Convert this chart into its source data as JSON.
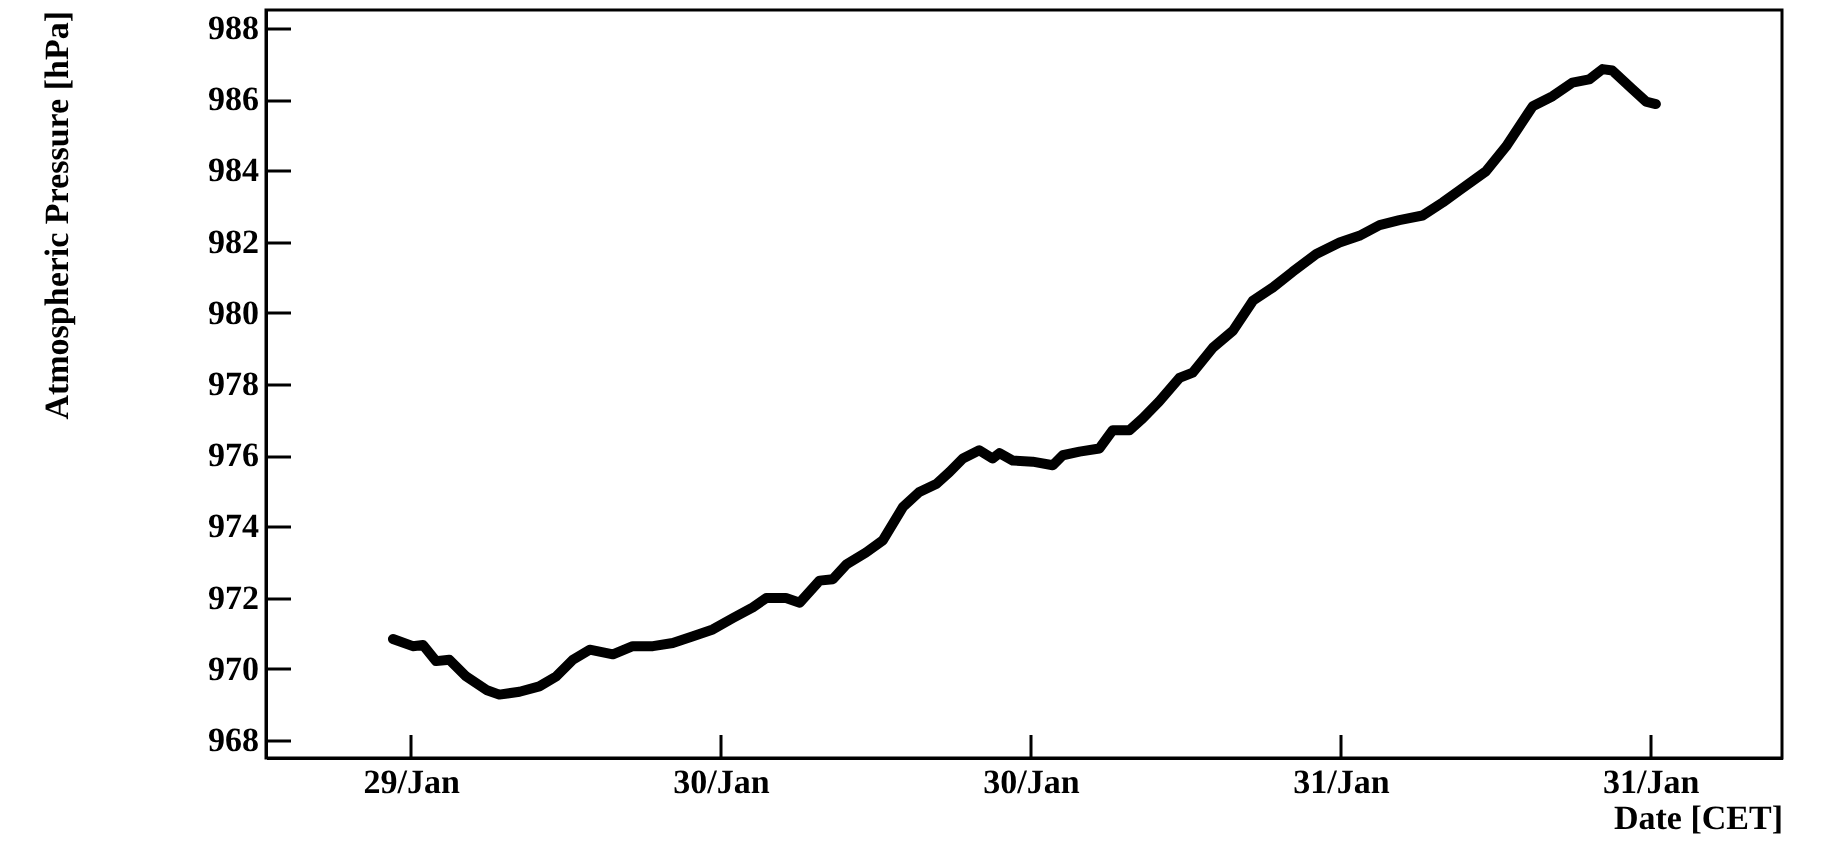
{
  "chart_data": {
    "type": "line",
    "xlabel": "Date [CET]",
    "ylabel": "Atmospheric Pressure [hPa]",
    "x": [
      "--01-29T11:19",
      "--01-29T12:05",
      "--01-29T12:29",
      "--01-29T12:59",
      "--01-29T13:30",
      "--01-29T14:09",
      "--01-29T14:56",
      "--01-29T15:26",
      "--01-29T16:13",
      "--01-29T16:59",
      "--01-29T17:38",
      "--01-29T18:17",
      "--01-29T18:56",
      "--01-29T19:50",
      "--01-29T20:36",
      "--01-29T21:23",
      "--01-29T22:09",
      "--01-29T22:56",
      "--01-29T23:42",
      "--01-30T00:29",
      "--01-30T01:15",
      "--01-30T01:46",
      "--01-30T02:32",
      "--01-30T03:04",
      "--01-30T03:50",
      "--01-30T04:21",
      "--01-30T04:52",
      "--01-30T05:38",
      "--01-30T06:17",
      "--01-30T07:04",
      "--01-30T07:42",
      "--01-30T08:21",
      "--01-30T08:52",
      "--01-30T09:23",
      "--01-30T10:01",
      "--01-30T10:32",
      "--01-30T10:48",
      "--01-30T11:19",
      "--01-30T12:05",
      "--01-30T12:52",
      "--01-30T13:15",
      "--01-30T13:54",
      "--01-30T14:40",
      "--01-30T15:11",
      "--01-30T15:50",
      "--01-30T16:21",
      "--01-30T16:59",
      "--01-30T17:46",
      "--01-30T18:17",
      "--01-30T19:04",
      "--01-30T19:50",
      "--01-30T20:37",
      "--01-30T21:23",
      "--01-30T22:09",
      "--01-30T23:04",
      "--01-30T23:58",
      "--01-31T00:44",
      "--01-31T01:31",
      "--01-31T02:17",
      "--01-31T03:11",
      "--01-31T03:58",
      "--01-31T04:37",
      "--01-31T05:38",
      "--01-31T06:25",
      "--01-31T07:27",
      "--01-31T08:13",
      "--01-31T08:59",
      "--01-31T09:38",
      "--01-31T10:09",
      "--01-31T10:32",
      "--01-31T11:19",
      "--01-31T11:50",
      "--01-31T12:13"
    ],
    "series": [
      {
        "color": "#000000",
        "values": [
          970.84,
          970.64,
          970.67,
          970.22,
          970.26,
          969.79,
          969.41,
          969.28,
          969.36,
          969.51,
          969.79,
          970.26,
          970.54,
          970.41,
          970.64,
          970.64,
          970.73,
          970.92,
          971.11,
          971.43,
          971.73,
          971.99,
          971.99,
          971.86,
          972.48,
          972.52,
          972.93,
          973.27,
          973.61,
          974.55,
          974.97,
          975.19,
          975.53,
          975.91,
          976.14,
          975.91,
          976.06,
          975.85,
          975.82,
          975.72,
          976.0,
          976.1,
          976.19,
          976.7,
          976.7,
          977.04,
          977.51,
          978.17,
          978.32,
          979.02,
          979.49,
          980.34,
          980.71,
          981.15,
          981.65,
          981.97,
          982.16,
          982.46,
          982.6,
          982.73,
          983.1,
          983.44,
          983.97,
          984.67,
          985.8,
          986.08,
          986.46,
          986.55,
          986.84,
          986.8,
          986.27,
          985.93,
          985.86
        ]
      }
    ],
    "xlim": [
      "--01-29T06:24",
      "--01-31T17:06"
    ],
    "xticks": [
      {
        "value": "--01-29T12:00",
        "label": "29/Jan"
      },
      {
        "value": "--01-30T00:00",
        "label": "30/Jan"
      },
      {
        "value": "--01-30T12:00",
        "label": "30/Jan"
      },
      {
        "value": "--01-31T00:00",
        "label": "31/Jan"
      },
      {
        "value": "--01-31T12:00",
        "label": "31/Jan"
      }
    ],
    "ylim": [
      967.5,
      988.5
    ],
    "yticks": [
      968,
      970,
      972,
      974,
      976,
      978,
      980,
      982,
      984,
      986,
      988
    ],
    "grid": false,
    "line_style": "solid"
  }
}
